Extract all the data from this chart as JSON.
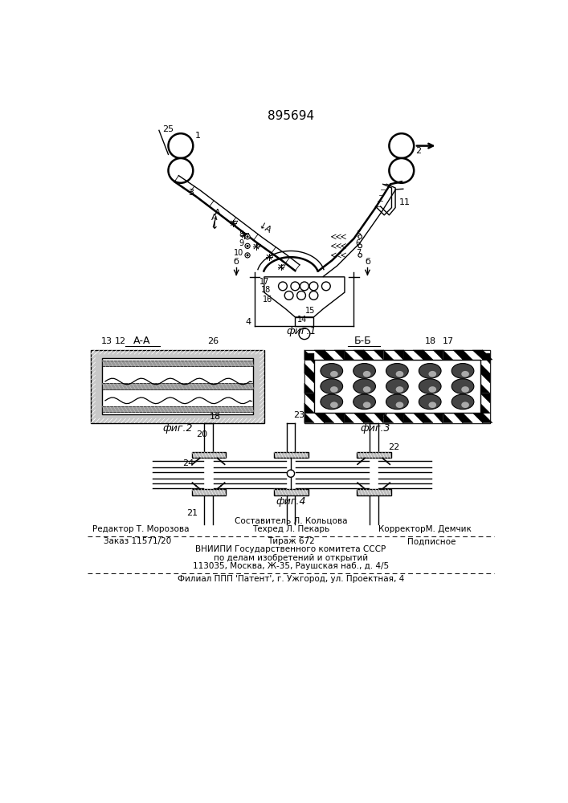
{
  "patent_number": "895694",
  "bg_color": "#ffffff",
  "line_color": "#000000",
  "fig_label1": "фиг.1",
  "fig_label2": "фиг.2",
  "fig_label3": "фиг.3",
  "fig_label4": "фиг.4",
  "section_AA": "А-А",
  "section_BB": "Б-Б",
  "footer_line0": "Составитель Л. Кольцова",
  "footer_line1a": "Редактор Т. Морозова",
  "footer_line1b": "Техред Л. Пекарь",
  "footer_line1c": "КорректорМ. Демчик",
  "footer_line2a": "Заказ 11571/20",
  "footer_line2b": "Тираж 672",
  "footer_line2c": "Подписное",
  "footer_line3": "ВНИИПИ Государственного комитета СССР",
  "footer_line4": "по делам изобретений и открытий",
  "footer_line5": "113035, Москва, Ж-35, Раушская наб., д. 4/5",
  "footer_line6": "Филиал ППП 'Патент', г. Ужгород, ул. Проектная, 4"
}
